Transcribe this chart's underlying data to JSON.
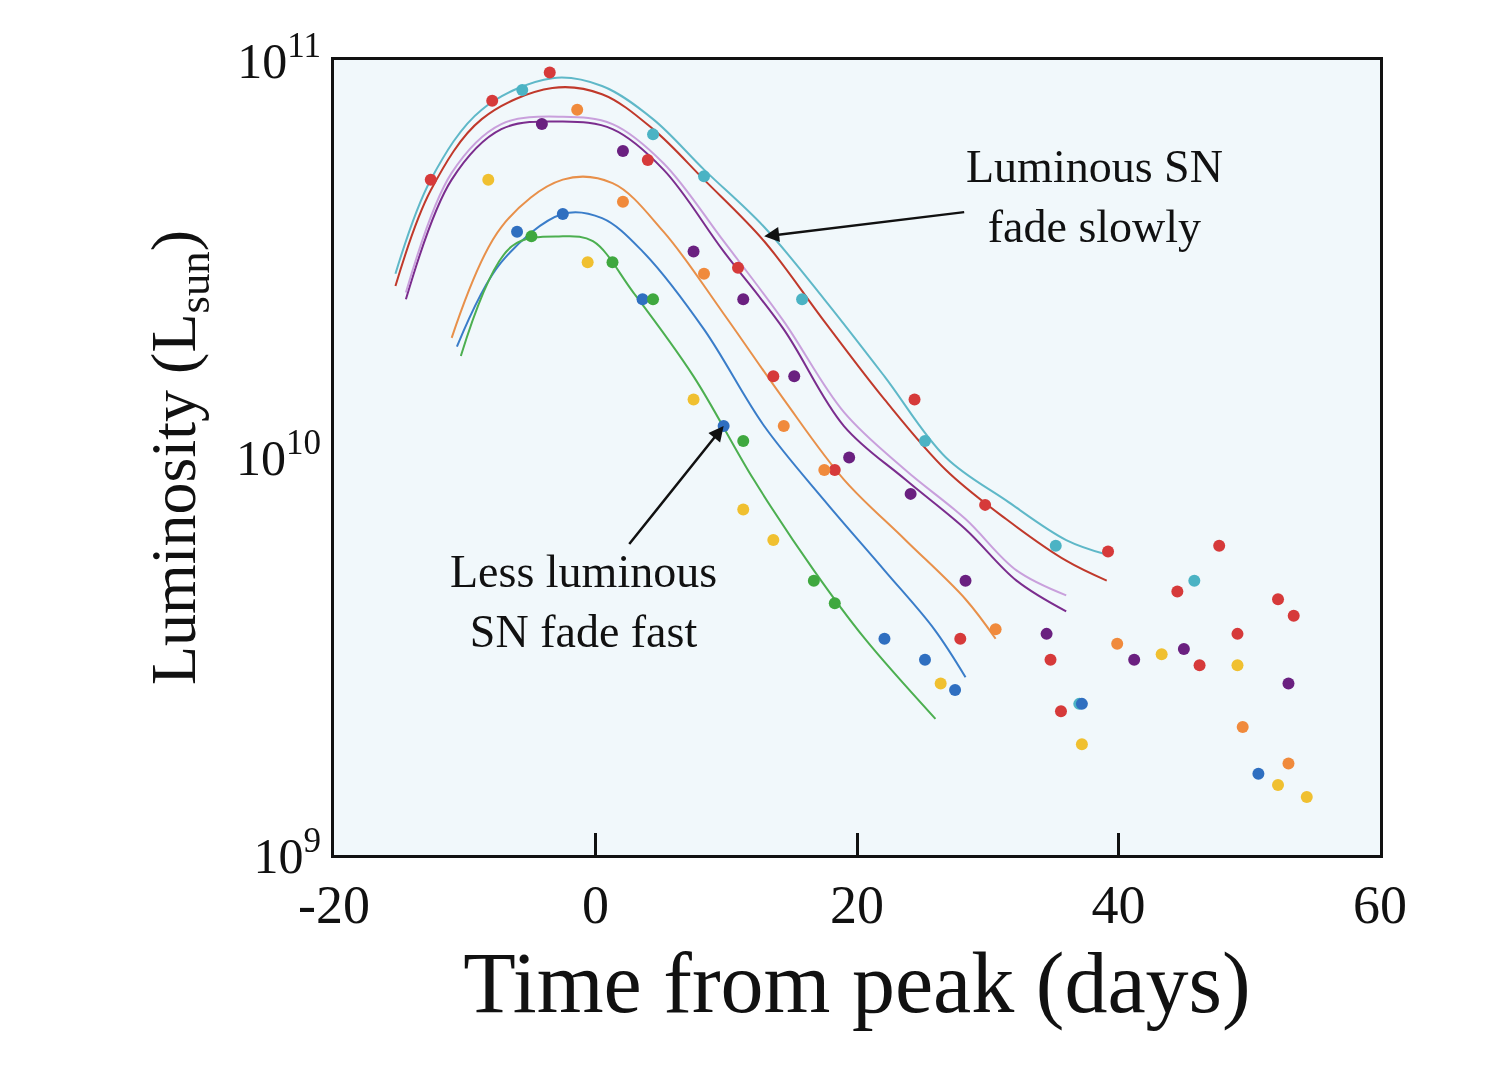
{
  "chart_data": {
    "type": "scatter",
    "xlabel": "Time from peak (days)",
    "ylabel": "Luminosity (L$_{sun}$)",
    "log": "y",
    "xlim": [
      -20,
      60
    ],
    "ylim": [
      1000000000.0,
      100000000000.0
    ],
    "xticks": [
      -20,
      0,
      20,
      40,
      60
    ],
    "yticks": [
      {
        "value": 1000000000.0,
        "label": "10$^{9}$"
      },
      {
        "value": 10000000000.0,
        "label": "10$^{10}$"
      },
      {
        "value": 100000000000.0,
        "label": "10$^{11}$"
      }
    ],
    "series": [
      {
        "type": "line",
        "color": "#5fb8c8",
        "x": [
          -15.3,
          -12.6,
          -8.7,
          -3.3,
          0.5,
          4.4,
          8.3,
          12.9,
          17.5,
          22.1,
          26.8,
          31.4,
          36.0,
          39.1
        ],
        "values": [
          29000000000.0,
          50000000000.0,
          75000000000.0,
          90000000000.0,
          86000000000.0,
          71000000000.0,
          53000000000.0,
          38000000000.0,
          25000000000.0,
          16000000000.0,
          10000000000.0,
          7800000000.0,
          6200000000.0,
          5700000000.0
        ]
      },
      {
        "type": "line",
        "color": "#c0392b",
        "x": [
          -15.3,
          -12.6,
          -8.7,
          -3.3,
          0.5,
          4.4,
          8.3,
          12.9,
          17.5,
          22.1,
          26.8,
          31.4,
          36.0,
          39.1
        ],
        "values": [
          27000000000.0,
          47000000000.0,
          71000000000.0,
          85000000000.0,
          82000000000.0,
          67000000000.0,
          50000000000.0,
          35000000000.0,
          22000000000.0,
          14000000000.0,
          9300000000.0,
          7000000000.0,
          5500000000.0,
          4900000000.0
        ]
      },
      {
        "type": "line",
        "color": "#7b2d8e",
        "x": [
          -14.5,
          -11.0,
          -7.2,
          -2.5,
          1.3,
          5.2,
          9.8,
          14.4,
          19.0,
          23.7,
          28.3,
          32.2,
          36.0
        ],
        "values": [
          25000000000.0,
          50000000000.0,
          67000000000.0,
          70000000000.0,
          67000000000.0,
          53000000000.0,
          33000000000.0,
          21000000000.0,
          12000000000.0,
          8800000000.0,
          6600000000.0,
          4900000000.0,
          4100000000.0
        ]
      },
      {
        "type": "line",
        "color": "#c9a0dc",
        "x": [
          -14.5,
          -11.0,
          -7.2,
          -2.5,
          1.3,
          5.2,
          9.8,
          14.4,
          19.0,
          23.7,
          28.3,
          32.2,
          36.0
        ],
        "values": [
          26000000000.0,
          52000000000.0,
          69000000000.0,
          72000000000.0,
          69000000000.0,
          55000000000.0,
          35000000000.0,
          22000000000.0,
          13000000000.0,
          9300000000.0,
          7000000000.0,
          5200000000.0,
          4500000000.0
        ]
      },
      {
        "type": "line",
        "color": "#e8904a",
        "x": [
          -11.0,
          -7.2,
          -2.5,
          1.3,
          5.2,
          9.8,
          14.4,
          19.0,
          23.7,
          28.3,
          30.6
        ],
        "values": [
          20000000000.0,
          38000000000.0,
          50000000000.0,
          49000000000.0,
          37000000000.0,
          23000000000.0,
          14000000000.0,
          8800000000.0,
          6200000000.0,
          4400000000.0,
          3500000000.0
        ]
      },
      {
        "type": "line",
        "color": "#3a7dc9",
        "x": [
          -10.6,
          -7.2,
          -2.5,
          0.5,
          3.6,
          8.3,
          12.9,
          17.5,
          22.1,
          25.9,
          28.3
        ],
        "values": [
          19000000000.0,
          31000000000.0,
          41000000000.0,
          40000000000.0,
          33000000000.0,
          21000000000.0,
          12000000000.0,
          7800000000.0,
          5200000000.0,
          3700000000.0,
          2800000000.0
        ]
      },
      {
        "type": "line",
        "color": "#4caf50",
        "x": [
          -10.3,
          -6.4,
          -2.5,
          -0.2,
          2.9,
          7.5,
          12.1,
          16.7,
          20.6,
          26.0
        ],
        "values": [
          18000000000.0,
          34000000000.0,
          36000000000.0,
          35000000000.0,
          26000000000.0,
          16000000000.0,
          8800000000.0,
          5200000000.0,
          3500000000.0,
          2200000000.0
        ]
      },
      {
        "type": "scatter",
        "color": "#d63a3a",
        "x": [
          -12.6,
          -7.9,
          -3.5,
          4.0,
          10.9,
          13.6,
          18.3,
          24.4,
          27.9,
          29.8,
          34.8,
          39.2,
          35.6,
          44.5,
          47.7,
          49.1,
          52.2,
          53.4,
          46.2
        ],
        "values": [
          50000000000.0,
          79000000000.0,
          93000000000.0,
          56000000000.0,
          30000000000.0,
          16000000000.0,
          9300000000.0,
          14000000000.0,
          3500000000.0,
          7600000000.0,
          3100000000.0,
          5800000000.0,
          2300000000.0,
          4600000000.0,
          6000000000.0,
          3600000000.0,
          4400000000.0,
          4000000000.0,
          3000000000.0
        ]
      },
      {
        "type": "scatter",
        "color": "#4bb3c4",
        "x": [
          -5.6,
          4.4,
          8.3,
          15.8,
          25.2,
          35.2,
          45.8,
          37.0
        ],
        "values": [
          84000000000.0,
          65000000000.0,
          51000000000.0,
          25000000000.0,
          11000000000.0,
          6000000000.0,
          4900000000.0,
          2400000000.0
        ]
      },
      {
        "type": "scatter",
        "color": "#6a2080",
        "x": [
          -4.1,
          2.1,
          7.5,
          11.3,
          15.2,
          19.4,
          24.1,
          28.3,
          34.5,
          41.2,
          45.0,
          53.0
        ],
        "values": [
          69000000000.0,
          59000000000.0,
          33000000000.0,
          25000000000.0,
          16000000000.0,
          10000000000.0,
          8100000000.0,
          4900000000.0,
          3600000000.0,
          3100000000.0,
          3300000000.0,
          2700000000.0
        ]
      },
      {
        "type": "scatter",
        "color": "#f08a3c",
        "x": [
          -1.4,
          2.1,
          8.3,
          14.4,
          17.5,
          30.6,
          39.9,
          49.5,
          53.0
        ],
        "values": [
          75000000000.0,
          44000000000.0,
          29000000000.0,
          12000000000.0,
          9300000000.0,
          3700000000.0,
          3400000000.0,
          2100000000.0,
          1700000000.0
        ]
      },
      {
        "type": "scatter",
        "color": "#2f6fc0",
        "x": [
          -6.0,
          -2.5,
          3.6,
          9.8,
          22.1,
          25.2,
          27.5,
          37.2,
          50.7
        ],
        "values": [
          37000000000.0,
          41000000000.0,
          25000000000.0,
          12000000000.0,
          3500000000.0,
          3100000000.0,
          2600000000.0,
          2400000000.0,
          1600000000.0
        ]
      },
      {
        "type": "scatter",
        "color": "#3fa83f",
        "x": [
          -4.9,
          1.3,
          4.4,
          11.3,
          16.7,
          18.3
        ],
        "values": [
          36000000000.0,
          31000000000.0,
          25000000000.0,
          11000000000.0,
          4900000000.0,
          4300000000.0
        ]
      },
      {
        "type": "scatter",
        "color": "#f0c030",
        "x": [
          -8.2,
          -0.6,
          7.5,
          11.3,
          13.6,
          26.4,
          37.2,
          52.2,
          54.4,
          49.1,
          43.3
        ],
        "values": [
          50000000000.0,
          31000000000.0,
          14000000000.0,
          7400000000.0,
          6200000000.0,
          2700000000.0,
          1900000000.0,
          1500000000.0,
          1400000000.0,
          3000000000.0,
          3200000000.0
        ]
      }
    ],
    "annotations": [
      {
        "text": "Luminous SN\nfade slowly",
        "x": 12.9,
        "y": 36000000000.0
      },
      {
        "text": "Less luminous\nSN fade fast",
        "x": 9.8,
        "y": 12000000000.0
      }
    ]
  }
}
